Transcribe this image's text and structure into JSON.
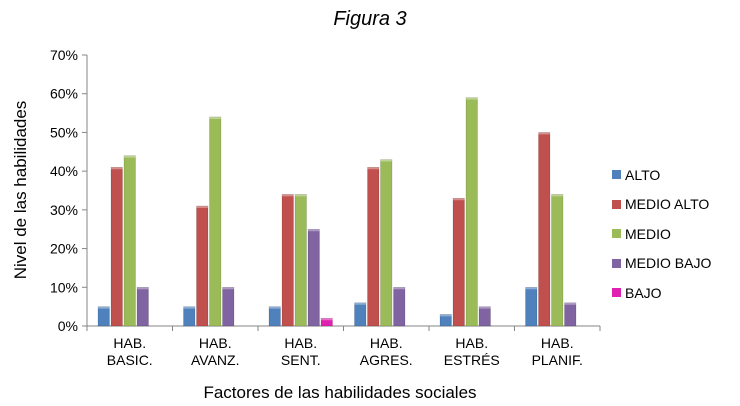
{
  "chart_data": {
    "type": "bar",
    "title": "Figura 3",
    "xlabel": "Factores de las habilidades sociales",
    "ylabel": "Nivel de las habilidades",
    "ylim": [
      0,
      70
    ],
    "yticks": [
      "0%",
      "10%",
      "20%",
      "30%",
      "40%",
      "50%",
      "60%",
      "70%"
    ],
    "categories": [
      [
        "HAB.",
        "BASIC."
      ],
      [
        "HAB.",
        "AVANZ."
      ],
      [
        "HAB.",
        "SENT."
      ],
      [
        "HAB.",
        "AGRES."
      ],
      [
        "HAB.",
        "ESTRÉS"
      ],
      [
        "HAB.",
        "PLANIF."
      ]
    ],
    "series": [
      {
        "name": "ALTO",
        "color": "#4F81BD",
        "values": [
          5,
          5,
          5,
          6,
          3,
          10
        ]
      },
      {
        "name": "MEDIO ALTO",
        "color": "#C0504D",
        "values": [
          41,
          31,
          34,
          41,
          33,
          50
        ]
      },
      {
        "name": "MEDIO",
        "color": "#9BBB59",
        "values": [
          44,
          54,
          34,
          43,
          59,
          34
        ]
      },
      {
        "name": "MEDIO BAJO",
        "color": "#8064A2",
        "values": [
          10,
          10,
          25,
          10,
          5,
          6
        ]
      },
      {
        "name": "BAJO",
        "color": "#E020B0",
        "values": [
          0,
          0,
          2,
          0,
          0,
          0
        ]
      }
    ],
    "legend_position": "right",
    "grid": false
  }
}
